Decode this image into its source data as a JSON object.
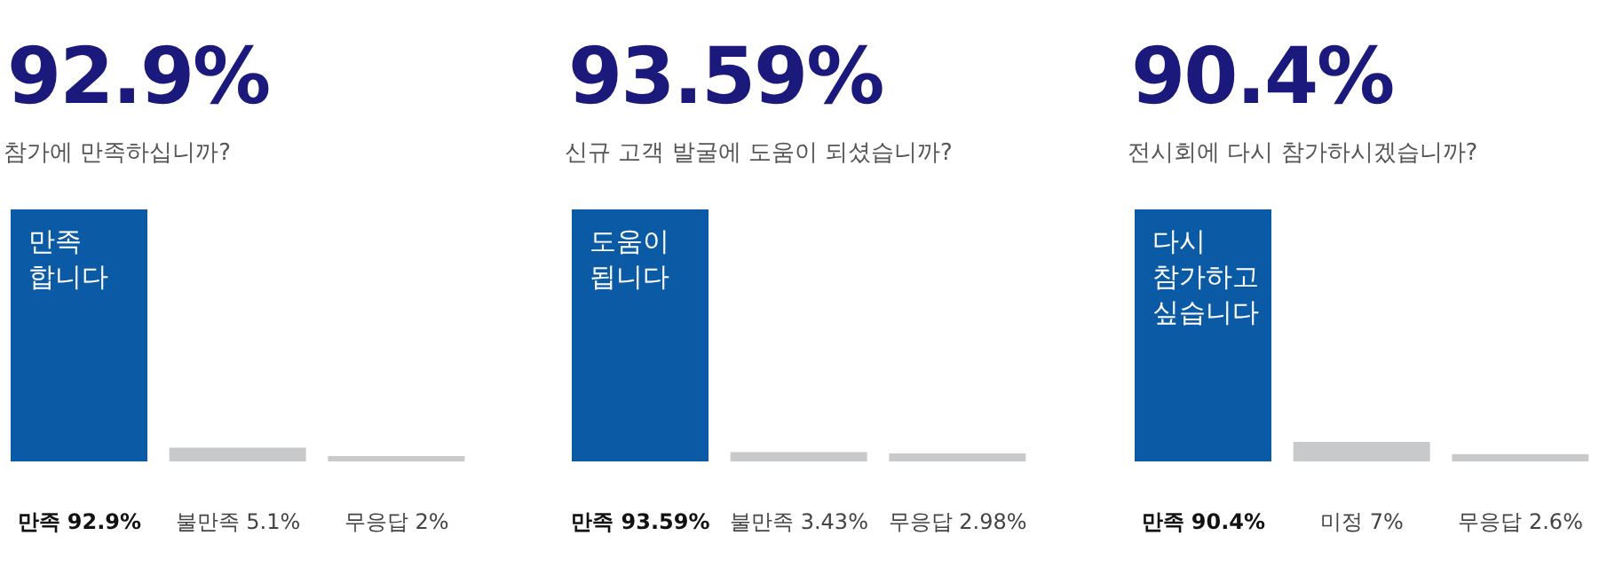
{
  "chart_data": [
    {
      "type": "bar",
      "title": "92.9%",
      "subtitle": "참가에 만족하십니까?",
      "categories": [
        "만족",
        "불만족",
        "무응답"
      ],
      "values": [
        92.9,
        5.1,
        2
      ],
      "value_labels": [
        "92.9%",
        "5.1%",
        "2%"
      ],
      "colors": [
        "#0b5aa6",
        "#c8c9cb",
        "#c8c9cb"
      ],
      "annotations": [
        "만족 합니다"
      ],
      "grid": false,
      "legend": false
    },
    {
      "type": "bar",
      "title": "93.59%",
      "subtitle": "신규 고객 발굴에 도움이 되셨습니까?",
      "categories": [
        "만족",
        "불만족",
        "무응답"
      ],
      "values": [
        93.59,
        3.43,
        2.98
      ],
      "value_labels": [
        "93.59%",
        "3.43%",
        "2.98%"
      ],
      "colors": [
        "#0b5aa6",
        "#c8c9cb",
        "#c8c9cb"
      ],
      "annotations": [
        "도움이 됩니다"
      ],
      "grid": false,
      "legend": false
    },
    {
      "type": "bar",
      "title": "90.4%",
      "subtitle": "전시회에 다시 참가하시겠습니까?",
      "categories": [
        "만족",
        "미정",
        "무응답"
      ],
      "values": [
        90.4,
        7,
        2.6
      ],
      "value_labels": [
        "90.4%",
        "7%",
        "2.6%"
      ],
      "colors": [
        "#0b5aa6",
        "#c8c9cb",
        "#c8c9cb"
      ],
      "annotations": [
        "다시 참가하고 싶습니다"
      ],
      "grid": false,
      "legend": false
    }
  ]
}
